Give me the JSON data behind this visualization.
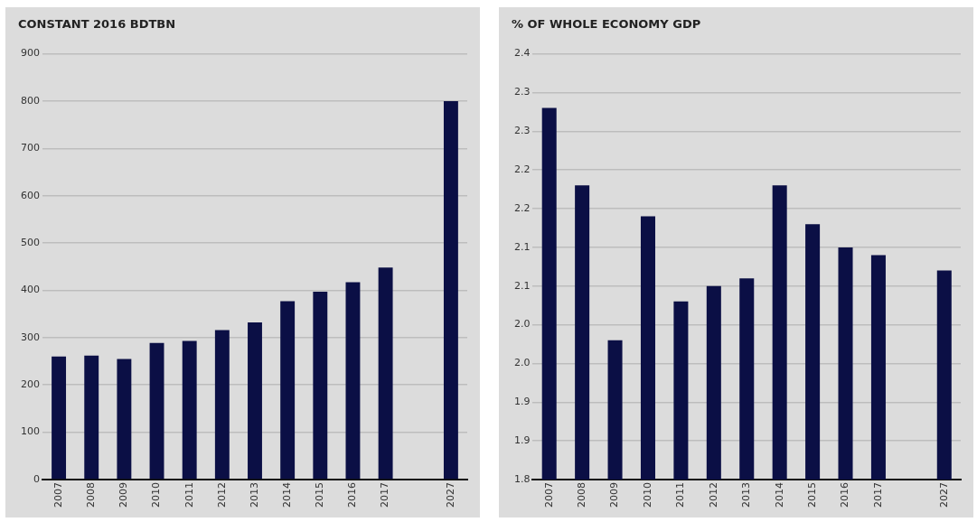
{
  "chart_data": [
    {
      "type": "bar",
      "title": "CONSTANT 2016 BDTBN",
      "categories": [
        "2007",
        "2008",
        "2009",
        "2010",
        "2011",
        "2012",
        "2013",
        "2014",
        "2015",
        "2016",
        "2017",
        null,
        "2027"
      ],
      "values": [
        260,
        262,
        255,
        289,
        293,
        316,
        332,
        377,
        397,
        417,
        448,
        null,
        800
      ],
      "color": "#0b0f45",
      "ylim": [
        0,
        900
      ],
      "yticks": [
        0,
        100,
        200,
        300,
        400,
        500,
        600,
        700,
        800,
        900
      ],
      "grid": "y",
      "legend": false
    },
    {
      "type": "bar",
      "title": "% OF WHOLE ECONOMY GDP",
      "categories": [
        "2007",
        "2008",
        "2009",
        "2010",
        "2011",
        "2012",
        "2013",
        "2014",
        "2015",
        "2016",
        "2017",
        null,
        "2027"
      ],
      "values": [
        2.28,
        2.18,
        1.98,
        2.14,
        2.03,
        2.05,
        2.06,
        2.18,
        2.13,
        2.1,
        2.09,
        null,
        2.07
      ],
      "color": "#0b0f45",
      "ylim": [
        1.8,
        2.35
      ],
      "yticks": [
        {
          "value": 1.8,
          "label": "1.8"
        },
        {
          "value": 1.85,
          "label": "1.9"
        },
        {
          "value": 1.9,
          "label": "1.9"
        },
        {
          "value": 1.95,
          "label": "2.0"
        },
        {
          "value": 2.0,
          "label": "2.0"
        },
        {
          "value": 2.05,
          "label": "2.1"
        },
        {
          "value": 2.1,
          "label": "2.1"
        },
        {
          "value": 2.15,
          "label": "2.2"
        },
        {
          "value": 2.2,
          "label": "2.2"
        },
        {
          "value": 2.25,
          "label": "2.3"
        },
        {
          "value": 2.3,
          "label": "2.3"
        },
        {
          "value": 2.35,
          "label": "2.4"
        }
      ],
      "grid": "y",
      "legend": false
    }
  ]
}
